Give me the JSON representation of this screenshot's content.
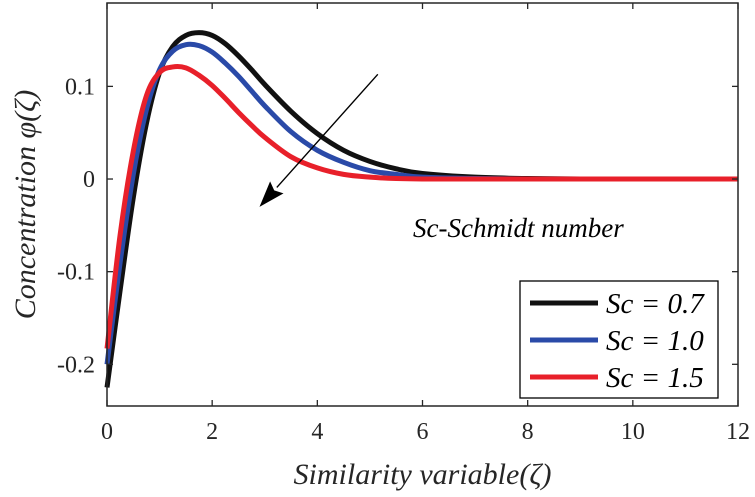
{
  "chart_data": {
    "type": "line",
    "title": "",
    "xlabel": "Similarity variable(ζ)",
    "ylabel": "Concentration φ(ζ)",
    "xlim": [
      0,
      12
    ],
    "ylim": [
      -0.245,
      0.19
    ],
    "xticks": [
      0,
      2,
      4,
      6,
      8,
      10,
      12
    ],
    "xtick_labels": [
      "0",
      "2",
      "4",
      "6",
      "8",
      "10",
      "12"
    ],
    "yticks": [
      -0.2,
      -0.1,
      0,
      0.1
    ],
    "ytick_labels": [
      "-0.2",
      "-0.1",
      "0",
      "0.1"
    ],
    "grid": false,
    "legend_position": "bottom-right",
    "annotation": {
      "text": "Sc-Schmidt number",
      "arrow_from": [
        5.15,
        0.113
      ],
      "arrow_to": [
        2.9,
        -0.03
      ]
    },
    "series": [
      {
        "name": "Sc = 0.7",
        "color": "#111111",
        "x": [
          0.0,
          0.25,
          0.5,
          0.75,
          1.0,
          1.25,
          1.5,
          1.75,
          2.0,
          2.25,
          2.5,
          2.75,
          3.0,
          3.5,
          4.0,
          4.5,
          5.0,
          5.5,
          6.0,
          7.0,
          8.0,
          9.0,
          10.0,
          11.0,
          12.0
        ],
        "y": [
          -0.225,
          -0.12,
          -0.02,
          0.06,
          0.115,
          0.143,
          0.155,
          0.158,
          0.155,
          0.146,
          0.133,
          0.118,
          0.102,
          0.073,
          0.049,
          0.031,
          0.019,
          0.011,
          0.006,
          0.002,
          0.0005,
          0.0,
          0.0,
          0.0,
          0.0
        ]
      },
      {
        "name": "Sc = 1.0",
        "color": "#2a4aa8",
        "x": [
          0.0,
          0.25,
          0.5,
          0.75,
          1.0,
          1.25,
          1.5,
          1.75,
          2.0,
          2.25,
          2.5,
          2.75,
          3.0,
          3.5,
          4.0,
          4.5,
          5.0,
          5.5,
          6.0,
          7.0,
          8.0,
          9.0,
          10.0,
          11.0,
          12.0
        ],
        "y": [
          -0.2,
          -0.09,
          0.005,
          0.075,
          0.118,
          0.138,
          0.145,
          0.144,
          0.137,
          0.125,
          0.111,
          0.095,
          0.079,
          0.051,
          0.031,
          0.018,
          0.009,
          0.005,
          0.002,
          0.0005,
          0.0,
          0.0,
          0.0,
          0.0,
          0.0
        ]
      },
      {
        "name": "Sc = 1.5",
        "color": "#e8202a",
        "x": [
          0.0,
          0.25,
          0.5,
          0.75,
          1.0,
          1.25,
          1.5,
          1.75,
          2.0,
          2.25,
          2.5,
          2.75,
          3.0,
          3.5,
          4.0,
          4.5,
          5.0,
          5.5,
          6.0,
          7.0,
          8.0,
          9.0,
          10.0,
          11.0,
          12.0
        ],
        "y": [
          -0.183,
          -0.06,
          0.03,
          0.09,
          0.115,
          0.121,
          0.12,
          0.112,
          0.101,
          0.087,
          0.072,
          0.058,
          0.045,
          0.024,
          0.012,
          0.005,
          0.002,
          0.0005,
          0.0,
          0.0,
          0.0,
          0.0,
          0.0,
          0.0,
          0.0
        ]
      }
    ]
  }
}
